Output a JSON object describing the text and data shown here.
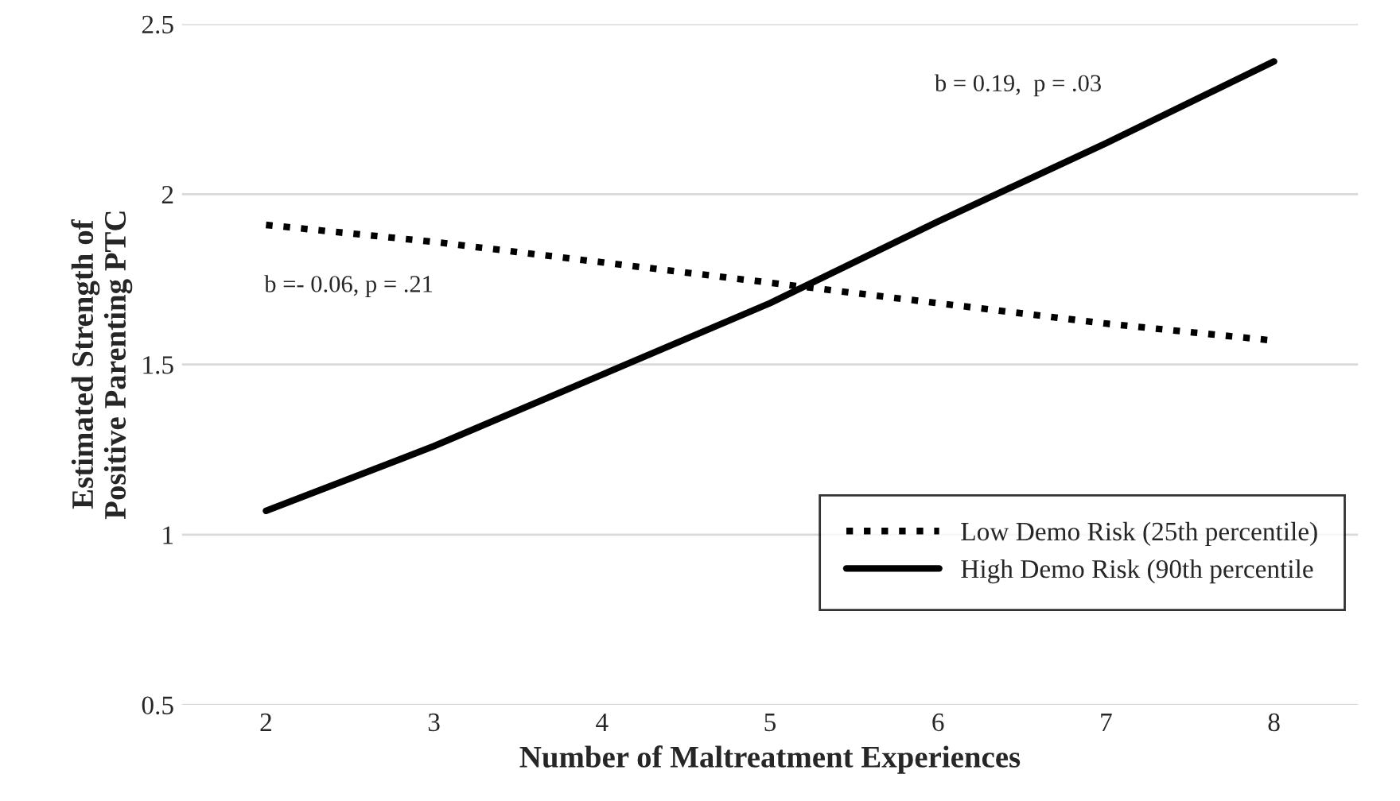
{
  "chart_data": {
    "type": "line",
    "xlabel": "Number of Maltreatment Experiences",
    "ylabel": "Estimated Strength of\nPositive Parenting PTC",
    "categories": [
      "2",
      "3",
      "4",
      "5",
      "6",
      "7",
      "8"
    ],
    "series": [
      {
        "name": "Low Demo Risk (25th percentile)",
        "color": "#000000",
        "line_style": "dotted",
        "values": [
          1.91,
          1.86,
          1.8,
          1.74,
          1.68,
          1.62,
          1.57
        ]
      },
      {
        "name": "High Demo Risk (90th percentile",
        "color": "#000000",
        "line_style": "solid",
        "values": [
          1.07,
          1.26,
          1.47,
          1.68,
          1.92,
          2.15,
          2.39
        ]
      }
    ],
    "ylim": [
      0.5,
      2.5
    ],
    "yticks": [
      0.5,
      1,
      1.5,
      2,
      2.5
    ],
    "grid": "y",
    "legend": "bottom right",
    "marker": "none",
    "annotations": [
      "b =- 0.06, p = .21",
      "b = 0.19,  p = .03"
    ]
  }
}
